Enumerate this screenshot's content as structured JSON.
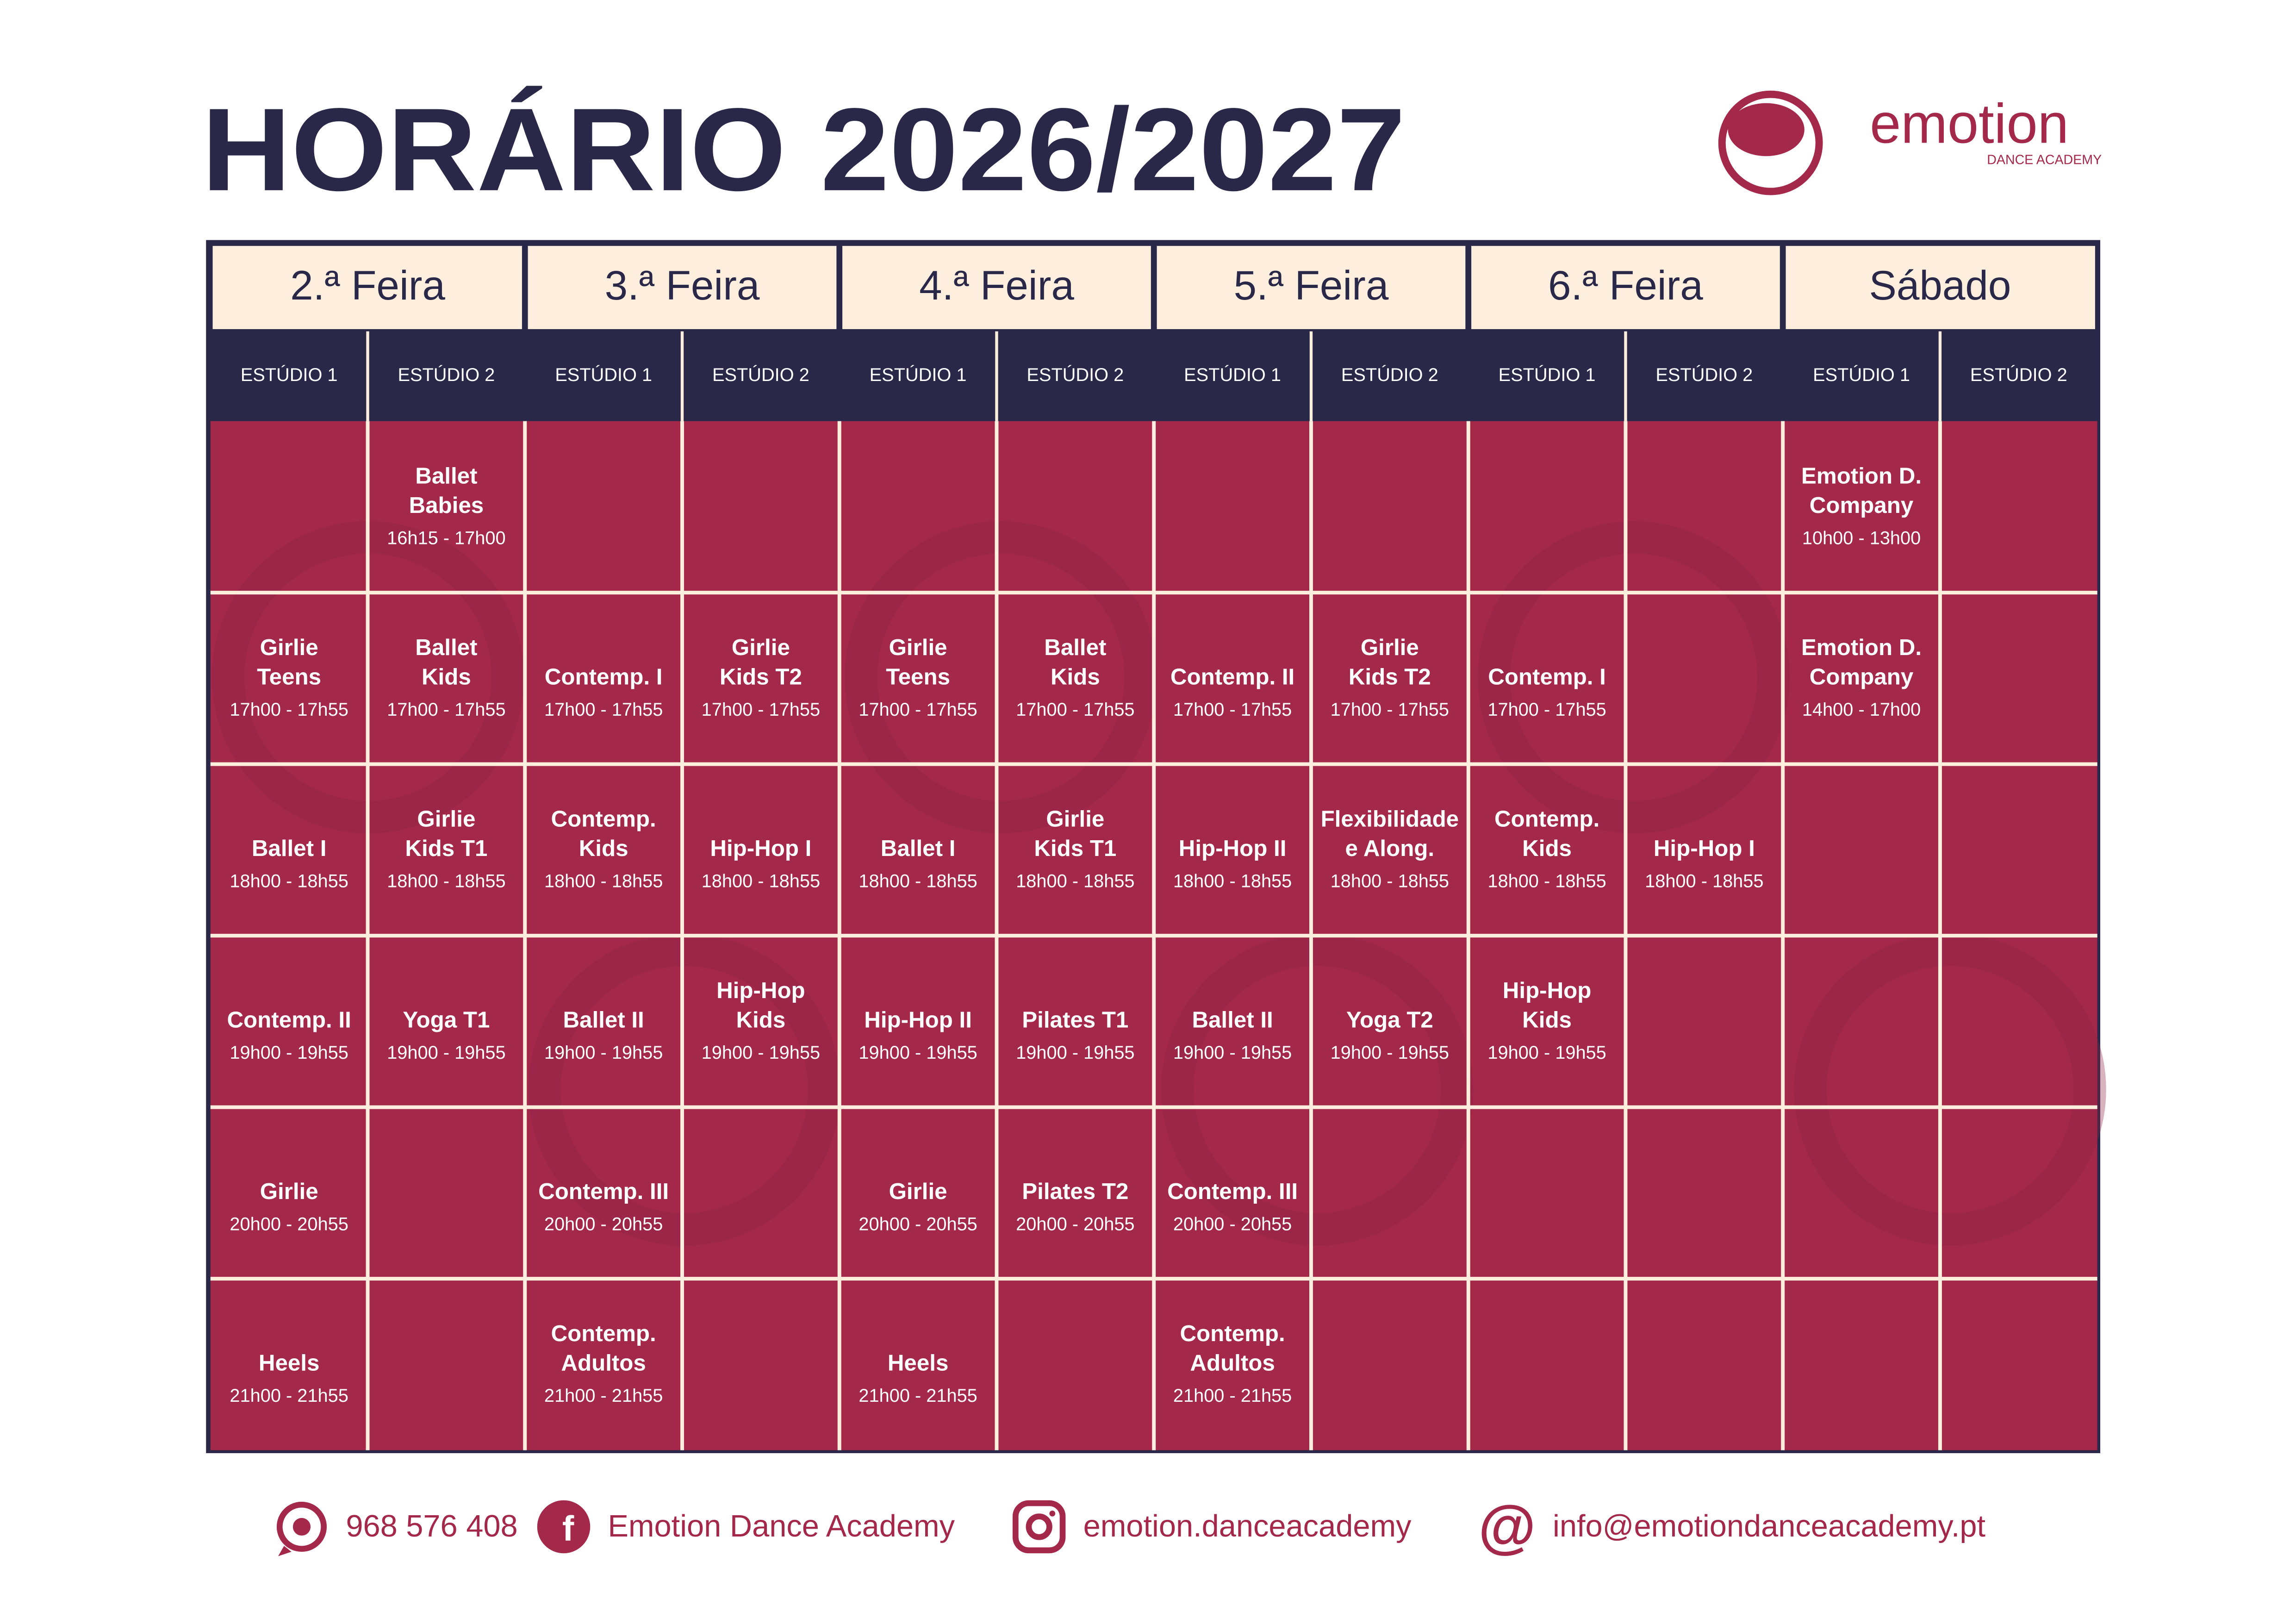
{
  "header": {
    "title": "HORÁRIO 2026/2027",
    "logo": {
      "name": "emotion",
      "tagline": "DANCE ACADEMY"
    }
  },
  "table": {
    "days": [
      "2.ª Feira",
      "3.ª Feira",
      "4.ª Feira",
      "5.ª Feira",
      "6.ª Feira",
      "Sábado"
    ],
    "studios": [
      "ESTÚDIO 1",
      "ESTÚDIO 2"
    ],
    "rows": [
      [
        null,
        {
          "lines": [
            "Ballet",
            "Babies"
          ],
          "time": "16h15 - 17h00"
        },
        null,
        null,
        null,
        null,
        null,
        null,
        null,
        null,
        {
          "lines": [
            "Emotion D.",
            "Company"
          ],
          "time": "10h00 - 13h00"
        },
        null
      ],
      [
        {
          "lines": [
            "Girlie",
            "Teens"
          ],
          "time": "17h00 - 17h55"
        },
        {
          "lines": [
            "Ballet",
            "Kids"
          ],
          "time": "17h00 - 17h55"
        },
        {
          "lines": [
            "Contemp. I"
          ],
          "time": "17h00 - 17h55"
        },
        {
          "lines": [
            "Girlie",
            "Kids T2"
          ],
          "time": "17h00 - 17h55"
        },
        {
          "lines": [
            "Girlie",
            "Teens"
          ],
          "time": "17h00 - 17h55"
        },
        {
          "lines": [
            "Ballet",
            "Kids"
          ],
          "time": "17h00 - 17h55"
        },
        {
          "lines": [
            "Contemp. II"
          ],
          "time": "17h00 - 17h55"
        },
        {
          "lines": [
            "Girlie",
            "Kids T2"
          ],
          "time": "17h00 - 17h55"
        },
        {
          "lines": [
            "Contemp. I"
          ],
          "time": "17h00 - 17h55"
        },
        null,
        {
          "lines": [
            "Emotion D.",
            "Company"
          ],
          "time": "14h00 - 17h00"
        },
        null
      ],
      [
        {
          "lines": [
            "Ballet I"
          ],
          "time": "18h00 - 18h55"
        },
        {
          "lines": [
            "Girlie",
            "Kids T1"
          ],
          "time": "18h00 - 18h55"
        },
        {
          "lines": [
            "Contemp.",
            "Kids"
          ],
          "time": "18h00 - 18h55"
        },
        {
          "lines": [
            "Hip-Hop I"
          ],
          "time": "18h00 - 18h55"
        },
        {
          "lines": [
            "Ballet I"
          ],
          "time": "18h00 - 18h55"
        },
        {
          "lines": [
            "Girlie",
            "Kids T1"
          ],
          "time": "18h00 - 18h55"
        },
        {
          "lines": [
            "Hip-Hop II"
          ],
          "time": "18h00 - 18h55"
        },
        {
          "lines": [
            "Flexibilidade",
            "e Along."
          ],
          "time": "18h00 - 18h55"
        },
        {
          "lines": [
            "Contemp.",
            "Kids"
          ],
          "time": "18h00 - 18h55"
        },
        {
          "lines": [
            "Hip-Hop I"
          ],
          "time": "18h00 - 18h55"
        },
        null,
        null
      ],
      [
        {
          "lines": [
            "Contemp. II"
          ],
          "time": "19h00 - 19h55"
        },
        {
          "lines": [
            "Yoga T1"
          ],
          "time": "19h00 - 19h55"
        },
        {
          "lines": [
            "Ballet II"
          ],
          "time": "19h00 - 19h55"
        },
        {
          "lines": [
            "Hip-Hop",
            "Kids"
          ],
          "time": "19h00 - 19h55"
        },
        {
          "lines": [
            "Hip-Hop II"
          ],
          "time": "19h00 - 19h55"
        },
        {
          "lines": [
            "Pilates T1"
          ],
          "time": "19h00 - 19h55"
        },
        {
          "lines": [
            "Ballet II"
          ],
          "time": "19h00 - 19h55"
        },
        {
          "lines": [
            "Yoga T2"
          ],
          "time": "19h00 - 19h55"
        },
        {
          "lines": [
            "Hip-Hop",
            "Kids"
          ],
          "time": "19h00 - 19h55"
        },
        null,
        null,
        null
      ],
      [
        {
          "lines": [
            "Girlie"
          ],
          "time": "20h00 - 20h55"
        },
        null,
        {
          "lines": [
            "Contemp. III"
          ],
          "time": "20h00 - 20h55"
        },
        null,
        {
          "lines": [
            "Girlie"
          ],
          "time": "20h00 - 20h55"
        },
        {
          "lines": [
            "Pilates T2"
          ],
          "time": "20h00 - 20h55"
        },
        {
          "lines": [
            "Contemp. III"
          ],
          "time": "20h00 - 20h55"
        },
        null,
        null,
        null,
        null,
        null
      ],
      [
        {
          "lines": [
            "Heels"
          ],
          "time": "21h00 - 21h55"
        },
        null,
        {
          "lines": [
            "Contemp.",
            "Adultos"
          ],
          "time": "21h00 - 21h55"
        },
        null,
        {
          "lines": [
            "Heels"
          ],
          "time": "21h00 - 21h55"
        },
        null,
        {
          "lines": [
            "Contemp.",
            "Adultos"
          ],
          "time": "21h00 - 21h55"
        },
        null,
        null,
        null,
        null,
        null
      ]
    ]
  },
  "footer": {
    "contacts": [
      "968 576 408",
      "Emotion Dance Academy",
      "emotion.danceacademy",
      "info@emotiondanceacademy.pt"
    ]
  }
}
